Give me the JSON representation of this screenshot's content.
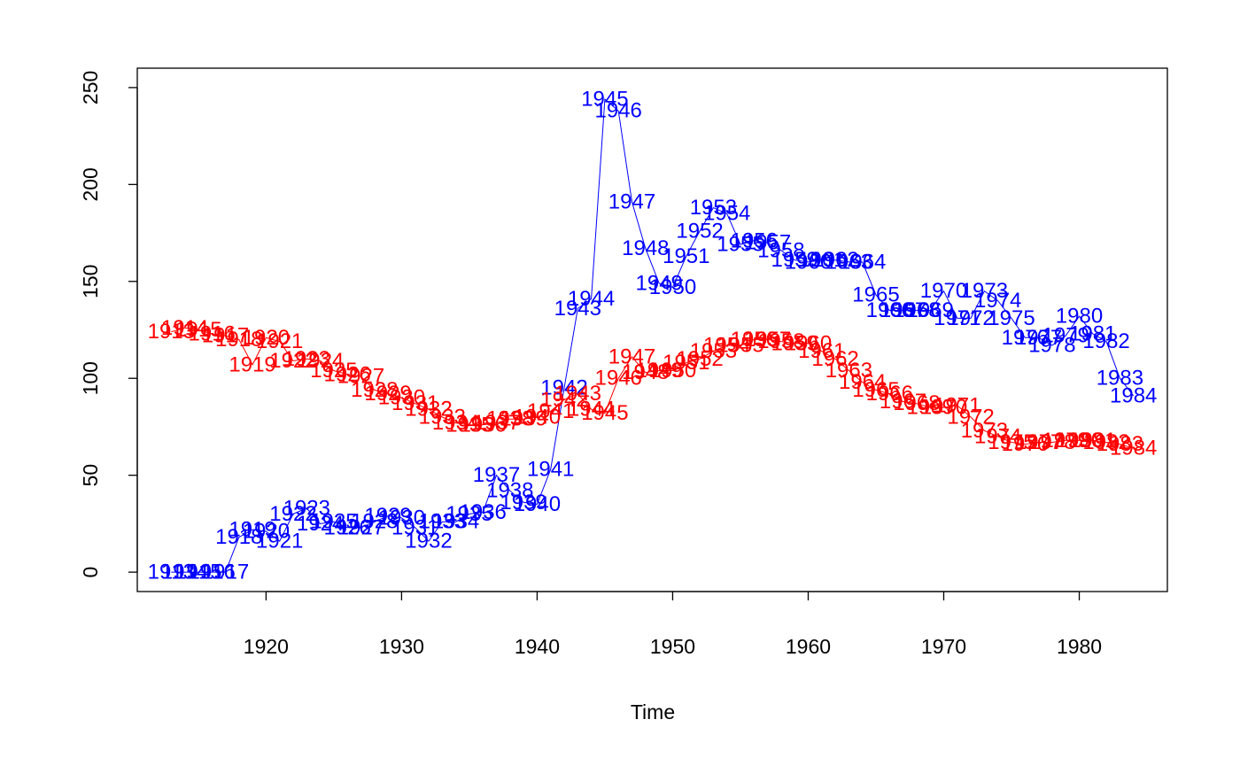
{
  "chart_data": {
    "type": "line",
    "title": "",
    "xlabel": "Time",
    "ylabel": "",
    "xlim": [
      1910.5,
      1986.5
    ],
    "ylim": [
      -10,
      260
    ],
    "xticks": [
      1920,
      1930,
      1940,
      1950,
      1960,
      1970,
      1980
    ],
    "yticks": [
      0,
      50,
      100,
      150,
      200,
      250
    ],
    "xtick_labels": [
      "1920",
      "1930",
      "1940",
      "1950",
      "1960",
      "1970",
      "1980"
    ],
    "ytick_labels": [
      "0",
      "50",
      "100",
      "150",
      "200",
      "250"
    ],
    "grid": false,
    "point_labels": "year",
    "series": [
      {
        "name": "blue series",
        "color": "#0000ff",
        "x": [
          1913,
          1914,
          1915,
          1916,
          1917,
          1918,
          1919,
          1920,
          1921,
          1922,
          1923,
          1924,
          1925,
          1926,
          1927,
          1928,
          1929,
          1930,
          1931,
          1932,
          1933,
          1934,
          1935,
          1936,
          1937,
          1938,
          1939,
          1940,
          1941,
          1942,
          1943,
          1944,
          1945,
          1946,
          1947,
          1948,
          1949,
          1950,
          1951,
          1952,
          1953,
          1954,
          1955,
          1956,
          1957,
          1958,
          1959,
          1960,
          1961,
          1962,
          1963,
          1964,
          1965,
          1966,
          1967,
          1968,
          1969,
          1970,
          1971,
          1972,
          1973,
          1974,
          1975,
          1976,
          1977,
          1978,
          1979,
          1980,
          1981,
          1982,
          1983,
          1984
        ],
        "values": [
          0,
          0,
          0,
          0,
          0,
          18,
          22,
          21,
          16,
          30,
          33,
          25,
          26,
          23,
          23,
          26,
          29,
          28,
          23,
          16,
          26,
          26,
          30,
          31,
          50,
          42,
          36,
          35,
          53,
          95,
          136,
          141,
          244,
          238,
          191,
          167,
          149,
          147,
          163,
          176,
          188,
          185,
          169,
          171,
          170,
          166,
          161,
          160,
          161,
          161,
          160,
          160,
          143,
          135,
          135,
          135,
          135,
          145,
          131,
          131,
          145,
          140,
          131,
          121,
          121,
          117,
          122,
          132,
          123,
          119,
          100,
          91
        ],
        "labels": [
          "1913",
          "1914",
          "1915",
          "1916",
          "1917",
          "1918",
          "1919",
          "1920",
          "1921",
          "1922",
          "1923",
          "1924",
          "1925",
          "1926",
          "1927",
          "1928",
          "1929",
          "1930",
          "1931",
          "1932",
          "1933",
          "1934",
          "1935",
          "1936",
          "1937",
          "1938",
          "1939",
          "1940",
          "1941",
          "1942",
          "1943",
          "1944",
          "1945",
          "1946",
          "1947",
          "1948",
          "1949",
          "1950",
          "1951",
          "1952",
          "1953",
          "1954",
          "1955",
          "1956",
          "1957",
          "1958",
          "1959",
          "1960",
          "1961",
          "1962",
          "1963",
          "1964",
          "1965",
          "1966",
          "1967",
          "1968",
          "1969",
          "1970",
          "1971",
          "1972",
          "1973",
          "1974",
          "1975",
          "1976",
          "1977",
          "1978",
          "1979",
          "1980",
          "1981",
          "1982",
          "1983",
          "1984"
        ]
      },
      {
        "name": "red series",
        "color": "#ff0000",
        "x": [
          1913,
          1914,
          1915,
          1916,
          1917,
          1918,
          1919,
          1920,
          1921,
          1922,
          1923,
          1924,
          1925,
          1926,
          1927,
          1928,
          1929,
          1930,
          1931,
          1932,
          1933,
          1934,
          1935,
          1936,
          1937,
          1938,
          1939,
          1940,
          1941,
          1942,
          1943,
          1944,
          1945,
          1946,
          1947,
          1948,
          1949,
          1950,
          1951,
          1952,
          1953,
          1954,
          1955,
          1956,
          1957,
          1958,
          1959,
          1960,
          1961,
          1962,
          1963,
          1964,
          1965,
          1966,
          1967,
          1968,
          1969,
          1970,
          1971,
          1972,
          1973,
          1974,
          1975,
          1976,
          1977,
          1978,
          1979,
          1980,
          1981,
          1982,
          1983,
          1984
        ],
        "values": [
          124,
          126,
          125,
          123,
          122,
          120,
          107,
          121,
          119,
          109,
          110,
          109,
          104,
          102,
          101,
          94,
          92,
          90,
          87,
          84,
          80,
          77,
          76,
          76,
          77,
          79,
          79,
          80,
          83,
          89,
          92,
          84,
          82,
          100,
          111,
          103,
          104,
          104,
          108,
          110,
          114,
          117,
          117,
          120,
          120,
          119,
          118,
          118,
          114,
          110,
          104,
          98,
          94,
          92,
          88,
          87,
          85,
          85,
          86,
          80,
          73,
          70,
          67,
          66,
          67,
          67,
          68,
          68,
          68,
          67,
          66,
          64
        ],
        "labels": [
          "1913",
          "1914",
          "1915",
          "1916",
          "1917",
          "1918",
          "1919",
          "1920",
          "1921",
          "1922",
          "1923",
          "1924",
          "1925",
          "1926",
          "1927",
          "1928",
          "1929",
          "1930",
          "1931",
          "1932",
          "1933",
          "1934",
          "1935",
          "1936",
          "1937",
          "1938",
          "1939",
          "1940",
          "1941",
          "1942",
          "1943",
          "1944",
          "1945",
          "1946",
          "1947",
          "1948",
          "1949",
          "1950",
          "1951",
          "1952",
          "1953",
          "1954",
          "1955",
          "1956",
          "1957",
          "1958",
          "1959",
          "1960",
          "1961",
          "1962",
          "1963",
          "1964",
          "1965",
          "1966",
          "1967",
          "1968",
          "1969",
          "1970",
          "1971",
          "1972",
          "1973",
          "1974",
          "1975",
          "1976",
          "1977",
          "1978",
          "1979",
          "1980",
          "1981",
          "1982",
          "1983",
          "1984"
        ]
      }
    ]
  }
}
